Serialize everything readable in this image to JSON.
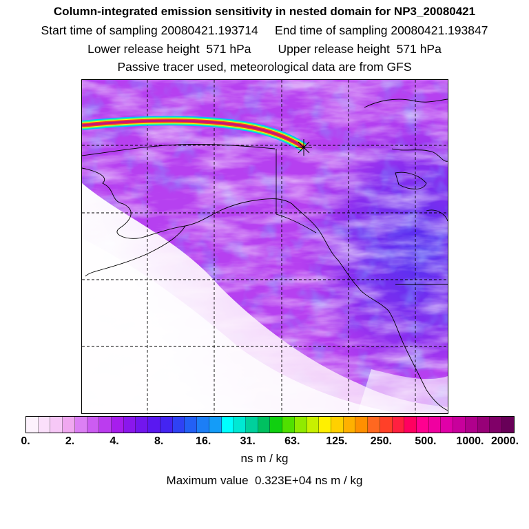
{
  "header": {
    "title": "Column-integrated emission sensitivity in nested domain for NP3_20080421",
    "sampling": "Start time of sampling 20080421.193714     End time of sampling 20080421.193847",
    "release": "Lower release height  571 hPa        Upper release height  571 hPa",
    "note": "Passive tracer used, meteorological data are from GFS"
  },
  "colorbar": {
    "labels": [
      "0.",
      "2.",
      "4.",
      "8.",
      "16.",
      "31.",
      "63.",
      "125.",
      "250.",
      "500.",
      "1000.",
      "2000."
    ],
    "colors": [
      "#fdf2fd",
      "#fbe0fb",
      "#f7c8f7",
      "#f0a8f0",
      "#dc80f4",
      "#cc5cf2",
      "#bb3cef",
      "#a71ded",
      "#8a17ec",
      "#7216ee",
      "#5a18f0",
      "#4424f2",
      "#2f42f4",
      "#2360f5",
      "#1c7ef6",
      "#149cf8",
      "#00ffff",
      "#00e8d4",
      "#00d09c",
      "#00c060",
      "#10d010",
      "#50e000",
      "#90ea00",
      "#c8f000",
      "#fff000",
      "#ffd000",
      "#ffb000",
      "#ff9000",
      "#ff6820",
      "#ff4028",
      "#ff2040",
      "#ff0060",
      "#ff0090",
      "#f000a0",
      "#e000a8",
      "#c8009c",
      "#b0008c",
      "#980078",
      "#800068",
      "#680058"
    ],
    "units": "ns m / kg",
    "maximum": "Maximum value  0.323E+04 ns m / kg"
  },
  "map": {
    "background": "#b83cf0",
    "track_colors": [
      "#00c0ff",
      "#40ff80",
      "#ffff00",
      "#ff4020",
      "#c01878"
    ]
  }
}
